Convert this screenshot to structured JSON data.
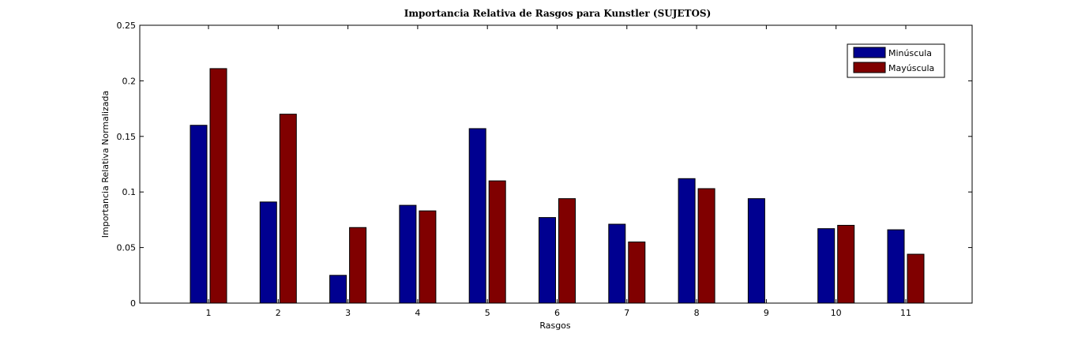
{
  "chart_data": {
    "type": "bar",
    "title": "Importancia Relativa de Rasgos para Kunstler (SUJETOS)",
    "xlabel": "Rasgos",
    "ylabel": "Importancia Relativa Normalizada",
    "categories": [
      "1",
      "2",
      "3",
      "4",
      "5",
      "6",
      "7",
      "8",
      "9",
      "10",
      "11"
    ],
    "ylim": [
      0,
      0.25
    ],
    "yticks": [
      "0",
      "0.05",
      "0.1",
      "0.15",
      "0.2",
      "0.25"
    ],
    "grid": false,
    "legend_position": "top-right",
    "series": [
      {
        "name": "Minúscula",
        "color": "#000090",
        "values": [
          0.16,
          0.091,
          0.025,
          0.088,
          0.157,
          0.077,
          0.071,
          0.112,
          0.094,
          0.067,
          0.066
        ]
      },
      {
        "name": "Mayúscula",
        "color": "#800000",
        "values": [
          0.211,
          0.17,
          0.068,
          0.083,
          0.11,
          0.094,
          0.055,
          0.103,
          0.0,
          0.07,
          0.044
        ]
      }
    ]
  }
}
